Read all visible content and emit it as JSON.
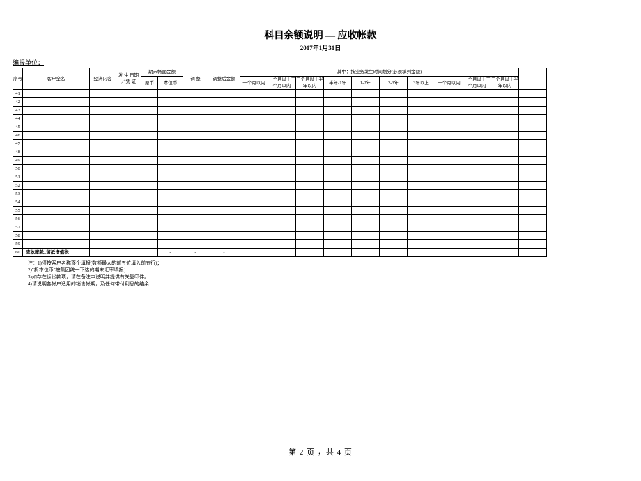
{
  "title": "科目余额说明 — 应收帐款",
  "subtitle": "2017年1月31日",
  "unit_label": "编报单位：",
  "headers": {
    "seq": "序号",
    "customer": "客户全名",
    "econ": "经济内容",
    "date": "发 生 日期／凭 证",
    "balance_group": "期末帐面金额",
    "orig": "原币",
    "local": "本位币",
    "adj": "调 整",
    "after_adj": "调整后金额",
    "time_group": "其中：按业务发生时间划分(必须填列金额)",
    "t1": "一个月以内",
    "t2": "一个月以上三个月以内",
    "t3": "三个月以上半年以内",
    "t4": "半年-1年",
    "t5": "1-2年",
    "t6": "2-3年",
    "t7": "3年以上",
    "t8": "一个月以内",
    "t9": "一个月以上三个月以内",
    "t10": "三个月以上半年以内"
  },
  "rows": [
    {
      "seq": "41"
    },
    {
      "seq": "42"
    },
    {
      "seq": "43"
    },
    {
      "seq": "44"
    },
    {
      "seq": "45"
    },
    {
      "seq": "46"
    },
    {
      "seq": "47"
    },
    {
      "seq": "48"
    },
    {
      "seq": "49"
    },
    {
      "seq": "50"
    },
    {
      "seq": "51"
    },
    {
      "seq": "52"
    },
    {
      "seq": "53"
    },
    {
      "seq": "54"
    },
    {
      "seq": "55"
    },
    {
      "seq": "56"
    },
    {
      "seq": "57"
    },
    {
      "seq": "58"
    },
    {
      "seq": "59"
    }
  ],
  "total_row": {
    "seq": "60",
    "name": "应收账款_留抵增值税",
    "local": "-",
    "adj": "-",
    "after": "-"
  },
  "notes": [
    "注：1)须按客户名称逐个填报(数额最大的前五位填入前五行)；",
    "2)\"折本位币\"按集团统一下达的期末汇率填报；",
    "3)如存在诉讼款项，请在备注中说明并提供有关复印件。",
    "4)请说明各帐户适用的销售帐期，及任何带付利息的结余"
  ],
  "footer": "第 2 页 ，共 4 页",
  "colors": {
    "bg": "#ffffff",
    "border": "#000000",
    "text": "#000000"
  }
}
